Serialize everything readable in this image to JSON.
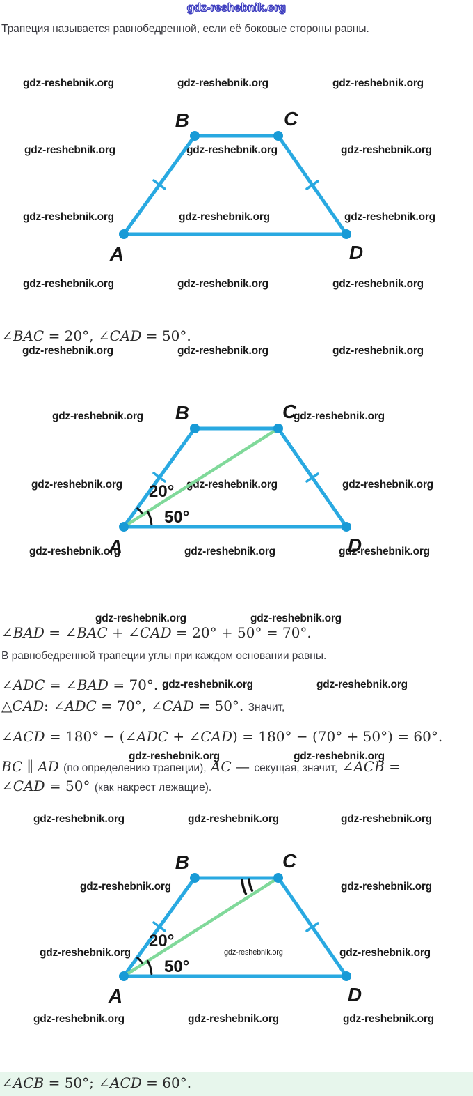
{
  "header": {
    "site": "gdz-reshebnik.org"
  },
  "watermark": {
    "text": "gdz-reshebnik.org"
  },
  "intro": "Трапеция называется равнобедренной, если её боковые стороны равны.",
  "given": "∠BAC = 20°, ∠CAD = 50°.",
  "solution": {
    "sum_line": "∠BAD = ∠BAC + ∠CAD = 20° + 50° = 70°.",
    "base_rule": "В равнобедренной трапеции углы при каждом основании равны.",
    "adc_line": "∠ADC = ∠BAD = 70°.",
    "triangle_line": {
      "math": "△CAD: ∠ADC = 70°, ∠CAD = 50°.",
      "text": "Значит,"
    },
    "acd_line": "∠ACD = 180° − (∠ADC + ∠CAD) = 180° − (70° + 50°) = 60°.",
    "parallel_line": {
      "m1": "BC ∥ AD",
      "t1": "(по определению трапеции),",
      "m2": "AC —",
      "t2": "секущая, значит,",
      "m3": "∠ACB ="
    },
    "alternate_line": {
      "math": "∠CAD = 50°",
      "text": "(как накрест лежащие)."
    }
  },
  "answer": "∠ACB = 50°; ∠ACD = 60°.",
  "diagram": {
    "labels": {
      "A": "A",
      "B": "B",
      "C": "C",
      "D": "D"
    },
    "angles": {
      "bac": "20°",
      "cad": "50°"
    },
    "colors": {
      "line": "#29A9E1",
      "dot": "#189AD6",
      "diagonal": "#80D99A",
      "marks": "#141414",
      "answer_bg": "#E7F6EC",
      "header_blue": "#4040C0"
    }
  }
}
